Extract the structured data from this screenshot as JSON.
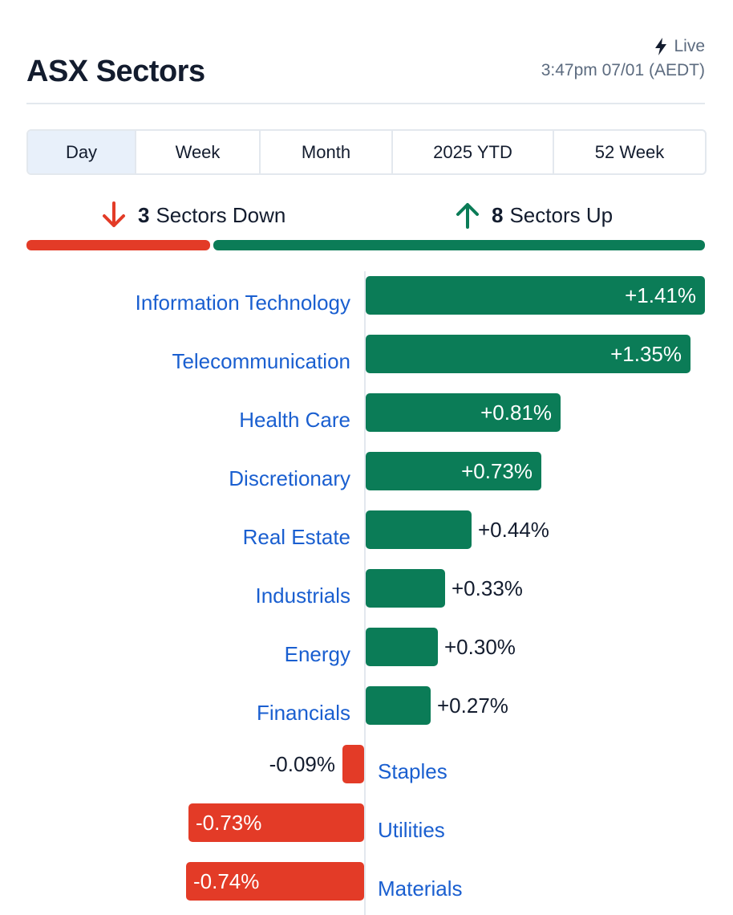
{
  "header": {
    "title": "ASX Sectors",
    "live_label": "Live",
    "timestamp": "3:47pm 07/01 (AEDT)"
  },
  "tabs": [
    {
      "label": "Day",
      "active": true
    },
    {
      "label": "Week",
      "active": false
    },
    {
      "label": "Month",
      "active": false
    },
    {
      "label": "2025 YTD",
      "active": false
    },
    {
      "label": "52 Week",
      "active": false
    }
  ],
  "summary": {
    "down_count": "3",
    "down_label": "Sectors Down",
    "up_count": "8",
    "up_label": "Sectors Up"
  },
  "colors": {
    "up": "#0b7c57",
    "down": "#e33b27",
    "label_link": "#1a5fd0",
    "text": "#131c2e",
    "muted": "#5c6b7f"
  },
  "chart_data": {
    "type": "bar",
    "orientation": "horizontal",
    "unit": "%",
    "categories": [
      "Information Technology",
      "Telecommunication",
      "Health Care",
      "Discretionary",
      "Real Estate",
      "Industrials",
      "Energy",
      "Financials",
      "Staples",
      "Utilities",
      "Materials"
    ],
    "values": [
      1.41,
      1.35,
      0.81,
      0.73,
      0.44,
      0.33,
      0.3,
      0.27,
      -0.09,
      -0.73,
      -0.74
    ],
    "value_labels": [
      "+1.41%",
      "+1.35%",
      "+0.81%",
      "+0.73%",
      "+0.44%",
      "+0.33%",
      "+0.30%",
      "+0.27%",
      "-0.09%",
      "-0.73%",
      "-0.74%"
    ]
  }
}
